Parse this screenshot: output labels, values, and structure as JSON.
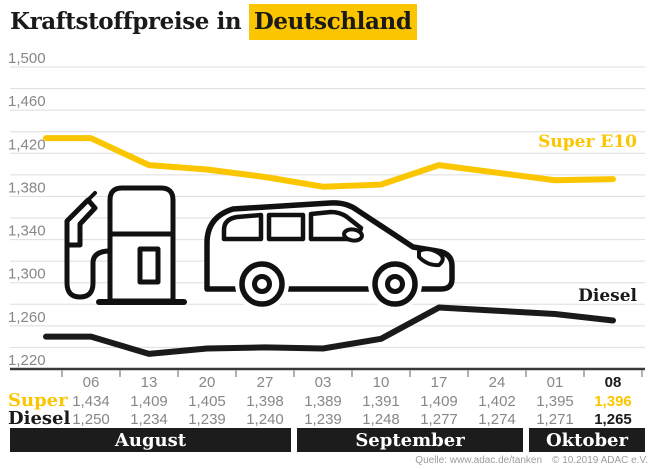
{
  "title": {
    "prefix": "Kraftstoffpreise in",
    "highlight": "Deutschland"
  },
  "chart_data": {
    "type": "line",
    "title": "Kraftstoffpreise in Deutschland",
    "x_labels": [
      "06",
      "13",
      "20",
      "27",
      "03",
      "10",
      "17",
      "24",
      "01",
      "08"
    ],
    "months": [
      {
        "label": "August",
        "columns": 4
      },
      {
        "label": "September",
        "columns": 4
      },
      {
        "label": "Oktober",
        "columns": 2
      }
    ],
    "y_axis": {
      "min": 1220,
      "max": 1500,
      "grid_step": 20,
      "label_step": 40,
      "tick_labels": [
        "1,220",
        "1,260",
        "1,300",
        "1,340",
        "1,380",
        "1,420",
        "1,460",
        "1,500"
      ]
    },
    "series": [
      {
        "name": "Super E10",
        "table_label": "Super",
        "color": "#FBC600",
        "values": [
          1434,
          1409,
          1405,
          1398,
          1389,
          1391,
          1409,
          1402,
          1395,
          1396
        ]
      },
      {
        "name": "Diesel",
        "table_label": "Diesel",
        "color": "#1a1a1a",
        "values": [
          1250,
          1234,
          1239,
          1240,
          1239,
          1248,
          1277,
          1274,
          1271,
          1265
        ]
      }
    ],
    "highlight_last_column": true,
    "legend_position": "inline-right",
    "grid": true
  },
  "footer": {
    "source_left": "Quelle: www.adac.de/tanken",
    "source_right": "© 10.2019 ADAC e.V."
  },
  "colors": {
    "accent": "#FBC600",
    "text_dark": "#1a1a1a",
    "text_gray": "#878787",
    "grid": "#dedede",
    "axis": "#3a3a3a",
    "tick": "#999999",
    "band_bg": "#1c1c1c"
  }
}
